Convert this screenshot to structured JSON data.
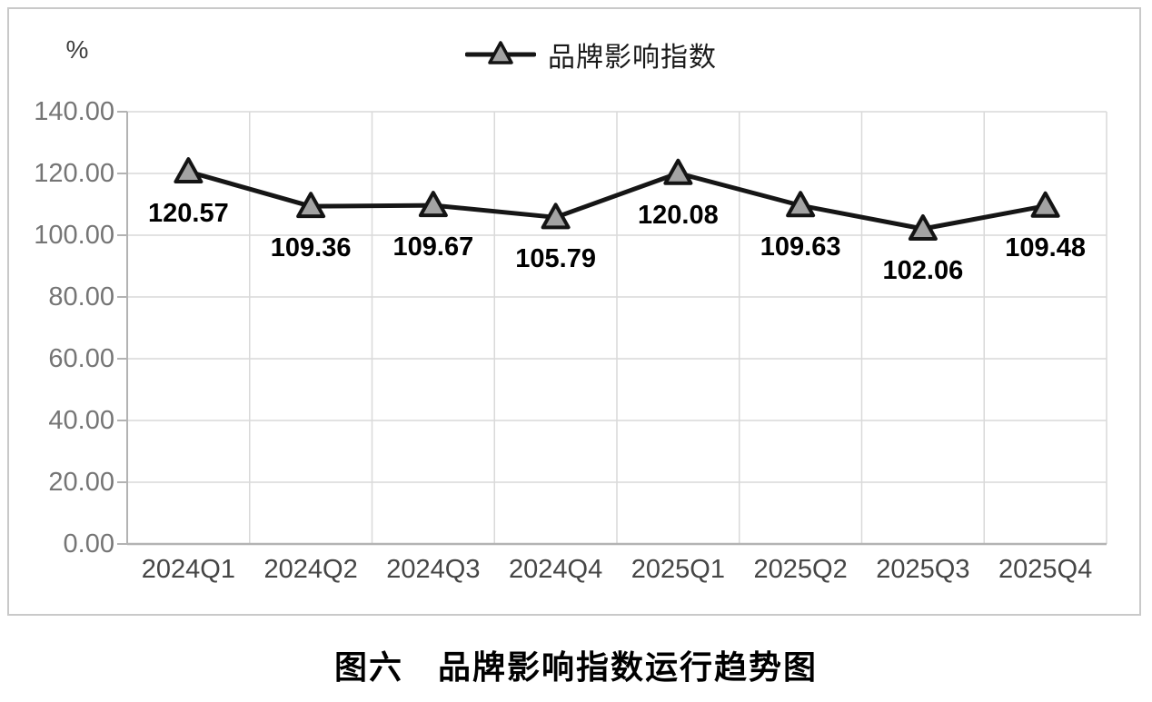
{
  "unit_label": "%",
  "legend": {
    "label": "品牌影响指数"
  },
  "caption": "图六　品牌影响指数运行趋势图",
  "chart_data": {
    "type": "line",
    "title": "图六 品牌影响指数运行趋势图",
    "categories": [
      "2024Q1",
      "2024Q2",
      "2024Q3",
      "2024Q4",
      "2025Q1",
      "2025Q2",
      "2025Q3",
      "2025Q4"
    ],
    "series": [
      {
        "name": "品牌影响指数",
        "marker": "triangle",
        "values": [
          120.57,
          109.36,
          109.67,
          105.79,
          120.08,
          109.63,
          102.06,
          109.48
        ]
      }
    ],
    "xlabel": "",
    "ylabel": "%",
    "ylim": [
      0,
      140
    ],
    "ytick_step": 20,
    "ytick_decimals": 2,
    "data_label_decimals": 2,
    "grid": true,
    "data_labels": true,
    "legend_position": "top-center",
    "colors": {
      "line": "#161616",
      "marker_fill": "#a3a3a3",
      "marker_stroke": "#141414",
      "grid": "#d9d9d9",
      "axis": "#b3b3b3",
      "ytick_text": "#757575",
      "xtick_text": "#454545",
      "data_label_text": "#000000",
      "legend_text": "#1a1a1a",
      "frame_border": "#c9c9c9"
    }
  }
}
